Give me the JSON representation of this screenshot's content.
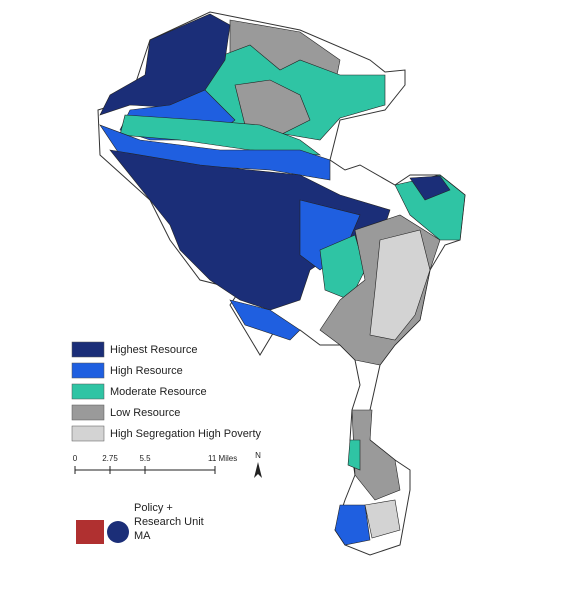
{
  "legend": {
    "items": [
      {
        "label": "Highest Resource",
        "color": "#1b2e78"
      },
      {
        "label": "High Resource",
        "color": "#1f5fe0"
      },
      {
        "label": "Moderate Resource",
        "color": "#2fc4a4"
      },
      {
        "label": "Low Resource",
        "color": "#9a9a9a"
      },
      {
        "label": "High Segregation High Poverty",
        "color": "#d3d3d3"
      }
    ]
  },
  "scale_bar": {
    "labels": [
      "0",
      "2.75",
      "5.5",
      "11 Miles"
    ]
  },
  "north_arrow": {
    "label": "N"
  },
  "logo": {
    "lines": [
      "Policy +",
      "Research Unit",
      "MA"
    ]
  }
}
